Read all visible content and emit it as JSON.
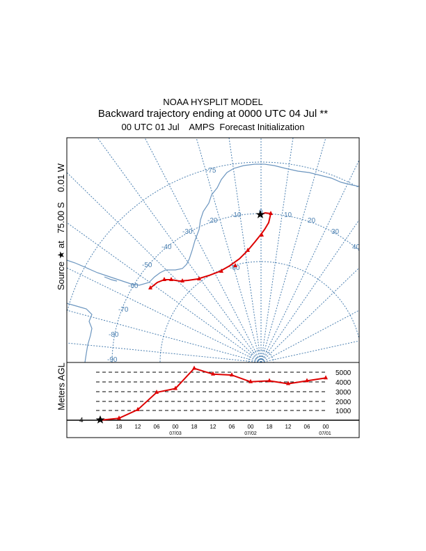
{
  "title": {
    "line1": "NOAA HYSPLIT MODEL",
    "line2": "Backward trajectory ending at 0000 UTC 04 Jul **",
    "line3": "00 UTC 01 Jul    AMPS  Forecast Initialization"
  },
  "source_label": "Source ★ at   75.00 S    0.01 W",
  "meters_label": "Meters AGL",
  "map": {
    "lat_labels": [
      "-75",
      "-80",
      "-70",
      "-60",
      "-90"
    ],
    "lon_labels": [
      "-10",
      "-20",
      "-30",
      "-40",
      "-50",
      "-60",
      "0",
      "10",
      "20",
      "30",
      "40"
    ],
    "grid_color": "#4a7fb0",
    "coast_color": "#6b95bf",
    "trajectory_color": "#dd0000",
    "source_icon": "star-icon"
  },
  "height_panel": {
    "y_ticks": [
      "5000",
      "4000",
      "3000",
      "2000",
      "1000"
    ],
    "x_ticks": [
      "18",
      "12",
      "06",
      "00",
      "18",
      "12",
      "06",
      "00",
      "18",
      "12",
      "06",
      "00"
    ],
    "date_labels": [
      "07/03",
      "07/02",
      "07/01"
    ],
    "left_marker": "4"
  },
  "chart_data": {
    "type": "line",
    "title": "",
    "xlabel": "",
    "ylabel": "Meters AGL",
    "series": [
      {
        "x": [
          "07/04 00",
          "07/03 18",
          "07/03 12",
          "07/03 06",
          "07/03 00",
          "07/02 18",
          "07/02 12",
          "07/02 06",
          "07/02 00",
          "07/01 18",
          "07/01 12",
          "07/01 06",
          "07/01 00"
        ],
        "values": [
          0,
          200,
          1100,
          2900,
          3300,
          5400,
          4800,
          4700,
          4000,
          4100,
          3800,
          4100,
          4400
        ]
      }
    ],
    "ylim": [
      0,
      5500
    ]
  }
}
